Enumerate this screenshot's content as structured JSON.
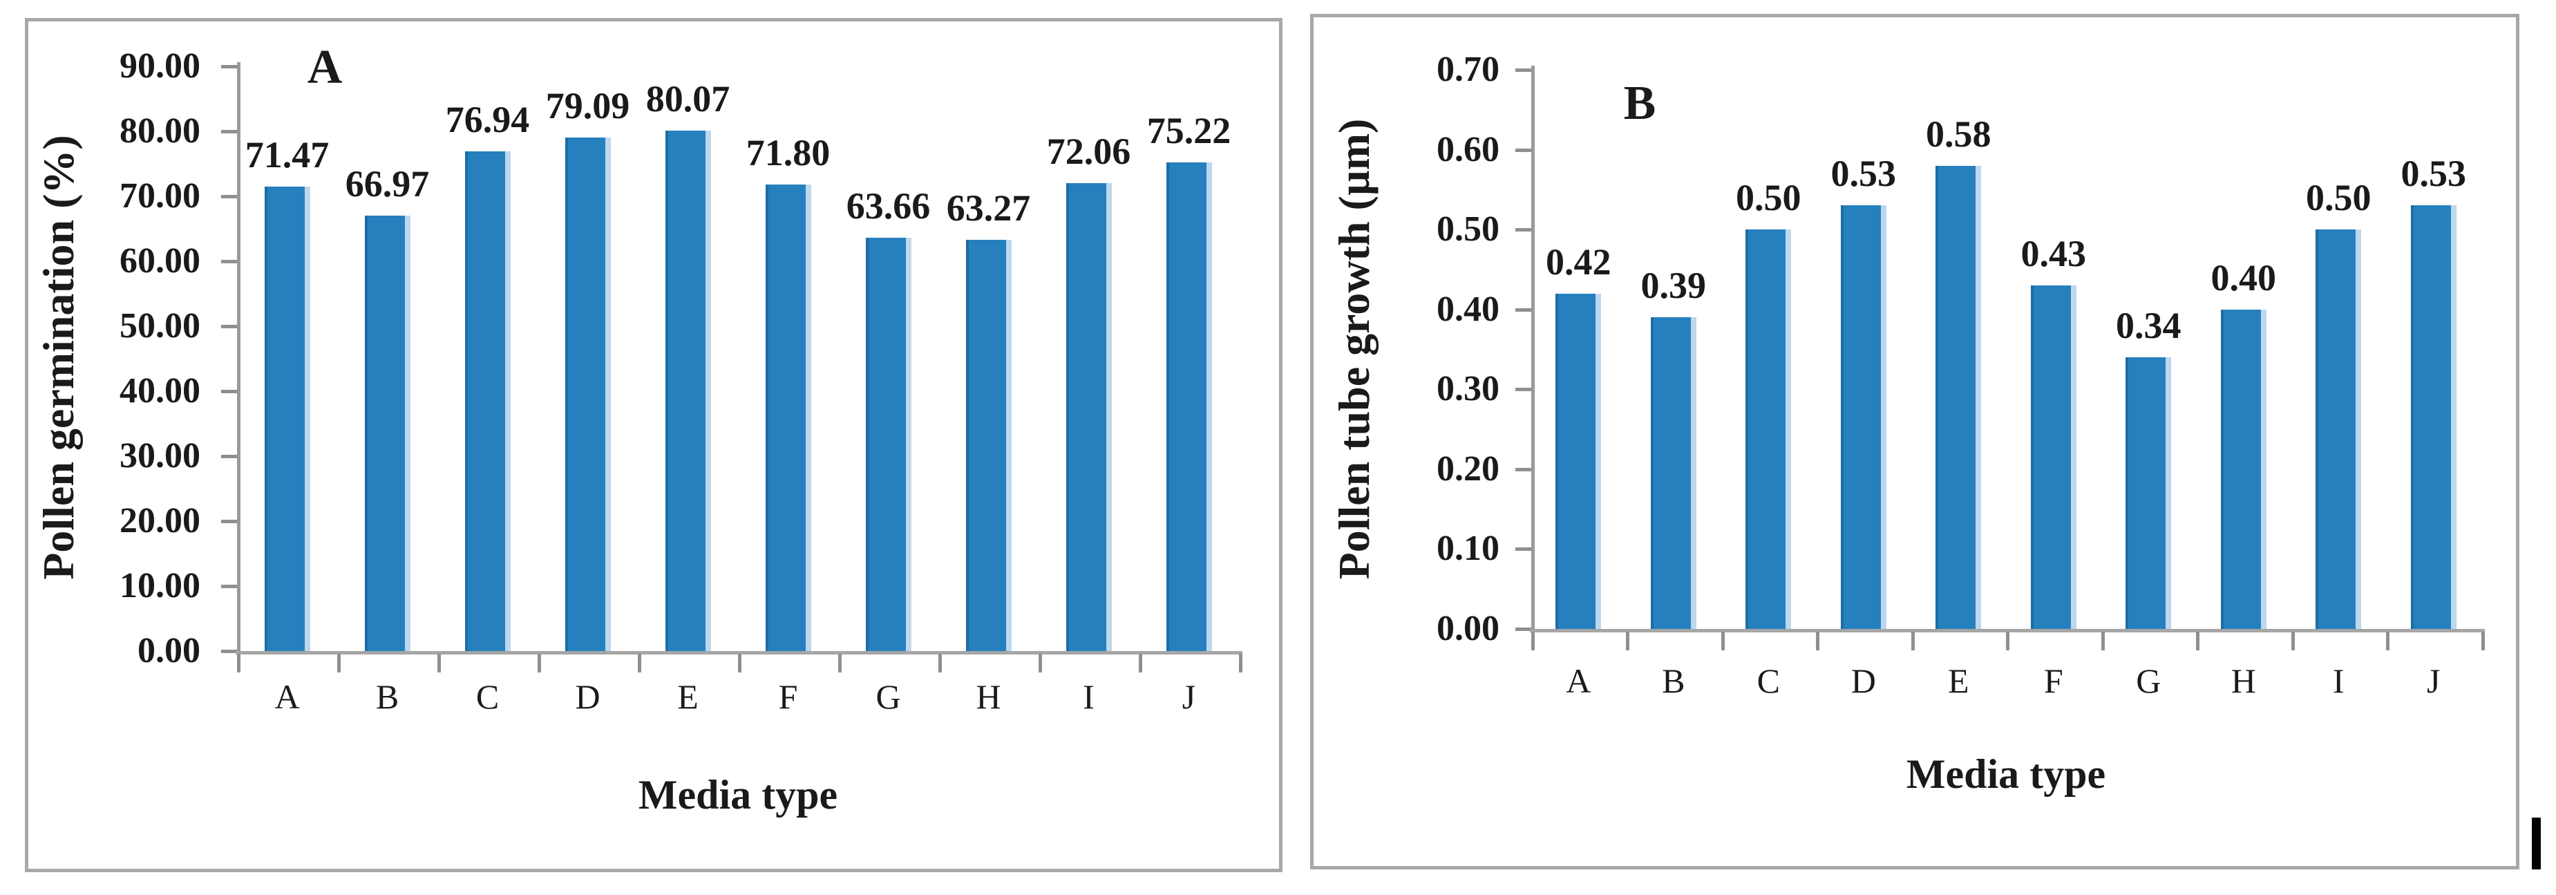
{
  "panels": [
    {
      "panel_label": "A",
      "y_axis_title": "Pollen germination (%)",
      "x_axis_title": "Media type",
      "y_tick_labels": [
        "90.00",
        "80.00",
        "70.00",
        "60.00",
        "50.00",
        "40.00",
        "30.00",
        "20.00",
        "10.00",
        "0.00"
      ]
    },
    {
      "panel_label": "B",
      "y_axis_title": "Pollen tube growth (µm)",
      "x_axis_title": "Media type",
      "y_tick_labels": [
        "0.70",
        "0.60",
        "0.50",
        "0.40",
        "0.30",
        "0.20",
        "0.10",
        "0.00"
      ]
    }
  ],
  "chart_data": [
    {
      "type": "bar",
      "title": "A",
      "categories": [
        "A",
        "B",
        "C",
        "D",
        "E",
        "F",
        "G",
        "H",
        "I",
        "J"
      ],
      "values": [
        71.47,
        66.97,
        76.94,
        79.09,
        80.07,
        71.8,
        63.66,
        63.27,
        72.06,
        75.22
      ],
      "data_labels": [
        "71.47",
        "66.97",
        "76.94",
        "79.09",
        "80.07",
        "71.80",
        "63.66",
        "63.27",
        "72.06",
        "75.22"
      ],
      "xlabel": "Media type",
      "ylabel": "Pollen germination (%)",
      "ylim": [
        0,
        90
      ],
      "ytick_step": 10,
      "grid": false,
      "legend": false,
      "bar_color": "#2580BD"
    },
    {
      "type": "bar",
      "title": "B",
      "categories": [
        "A",
        "B",
        "C",
        "D",
        "E",
        "F",
        "G",
        "H",
        "I",
        "J"
      ],
      "values": [
        0.42,
        0.39,
        0.5,
        0.53,
        0.58,
        0.43,
        0.34,
        0.4,
        0.5,
        0.53
      ],
      "data_labels": [
        "0.42",
        "0.39",
        "0.50",
        "0.53",
        "0.58",
        "0.43",
        "0.34",
        "0.40",
        "0.50",
        "0.53"
      ],
      "xlabel": "Media type",
      "ylabel": "Pollen tube growth (µm)",
      "ylim": [
        0,
        0.7
      ],
      "ytick_step": 0.1,
      "grid": false,
      "legend": false,
      "bar_color": "#2580BD"
    }
  ],
  "colors": {
    "bar": "#2580BD",
    "bar_edge_light": "#BDD7EE",
    "bar_edge_dark": "#1E6CA5",
    "y_axis_line": "#9A9A9A",
    "x_baseline": "#A6A6A6",
    "tick": "#8F8F8F",
    "panel_border": "#A8A8A8",
    "text": "#1A1A1A",
    "background": "#FFFFFF"
  }
}
